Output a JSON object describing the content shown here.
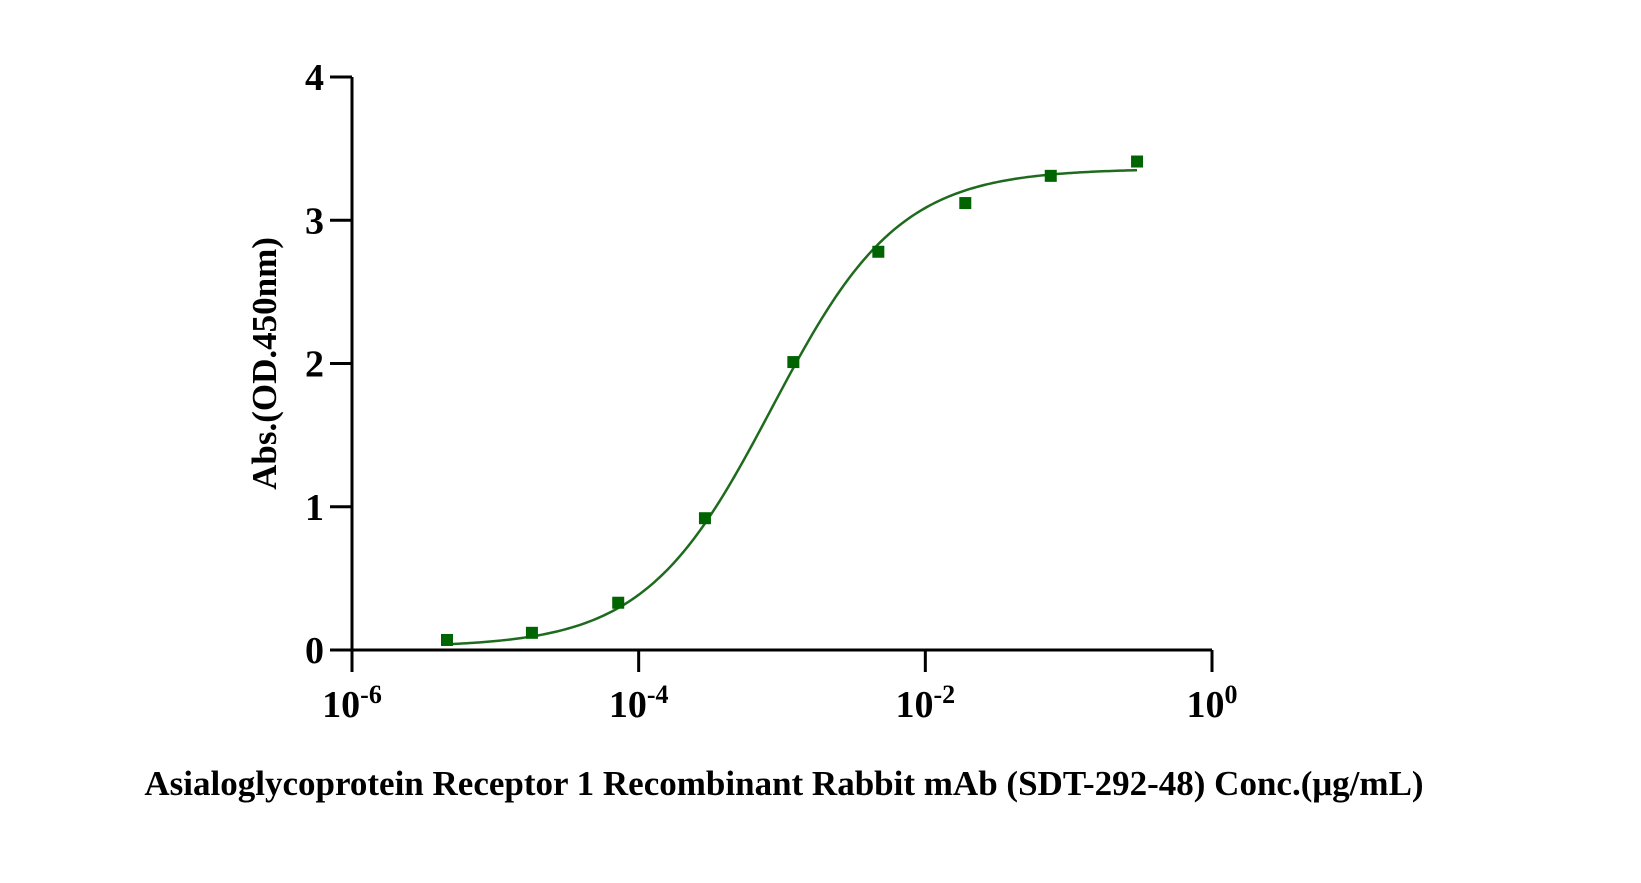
{
  "chart_data": {
    "type": "scatter",
    "title": "",
    "xlabel": "Asialoglycoprotein Receptor 1 Recombinant Rabbit mAb (SDT-292-48) Conc.(μg/mL)",
    "ylabel": "Abs.(OD.450nm)",
    "x_scale": "log",
    "xlim": [
      1e-06,
      1
    ],
    "ylim": [
      0,
      4
    ],
    "x_ticks": [
      {
        "value": 1e-06,
        "base": "10",
        "exp": "-6"
      },
      {
        "value": 0.0001,
        "base": "10",
        "exp": "-4"
      },
      {
        "value": 0.01,
        "base": "10",
        "exp": "-2"
      },
      {
        "value": 1,
        "base": "10",
        "exp": "0"
      }
    ],
    "y_ticks": [
      0,
      1,
      2,
      3,
      4
    ],
    "grid": false,
    "legend": "none",
    "series": [
      {
        "color": "#006400",
        "marker": "square",
        "x": [
          4.6e-06,
          1.8e-05,
          7.2e-05,
          0.00029,
          0.0012,
          0.0047,
          0.019,
          0.075,
          0.3
        ],
        "y": [
          0.07,
          0.12,
          0.33,
          0.92,
          2.01,
          2.78,
          3.12,
          3.31,
          3.41
        ]
      }
    ],
    "fit": {
      "model": "4PL",
      "color": "#1e6b1e",
      "x_range": [
        4.6e-06,
        0.3
      ],
      "bottom": 0.02,
      "top": 3.36,
      "ec50": 0.00085,
      "hill": 0.98
    }
  }
}
